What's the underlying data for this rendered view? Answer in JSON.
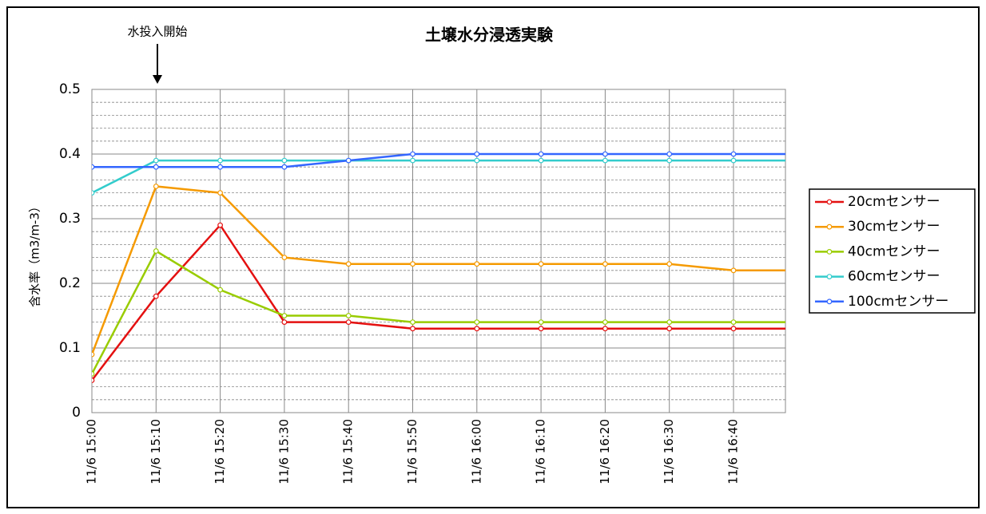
{
  "chart_data": {
    "type": "line",
    "title": "土壌水分浸透実験",
    "annotation": "水投入開始",
    "ylabel": "含水率（m3/m-3）",
    "categories": [
      "11/6 15:00",
      "11/6 15:10",
      "11/6 15:20",
      "11/6 15:30",
      "11/6 15:40",
      "11/6 15:50",
      "11/6 16:00",
      "11/6 16:10",
      "11/6 16:20",
      "11/6 16:30",
      "11/6 16:40",
      null
    ],
    "series": [
      {
        "name": "20cmセンサー",
        "color": "#e41010",
        "values": [
          0.05,
          0.18,
          0.29,
          0.14,
          0.14,
          0.13,
          0.13,
          0.13,
          0.13,
          0.13,
          0.13,
          0.13
        ]
      },
      {
        "name": "30cmセンサー",
        "color": "#f59a00",
        "values": [
          0.09,
          0.35,
          0.34,
          0.24,
          0.23,
          0.23,
          0.23,
          0.23,
          0.23,
          0.23,
          0.22,
          0.22
        ]
      },
      {
        "name": "40cmセンサー",
        "color": "#99cc00",
        "values": [
          0.06,
          0.25,
          0.19,
          0.15,
          0.15,
          0.14,
          0.14,
          0.14,
          0.14,
          0.14,
          0.14,
          0.14
        ]
      },
      {
        "name": "60cmセンサー",
        "color": "#33cccc",
        "values": [
          0.34,
          0.39,
          0.39,
          0.39,
          0.39,
          0.39,
          0.39,
          0.39,
          0.39,
          0.39,
          0.39,
          0.39
        ]
      },
      {
        "name": "100cmセンサー",
        "color": "#3366ff",
        "values": [
          0.38,
          0.38,
          0.38,
          0.38,
          0.39,
          0.4,
          0.4,
          0.4,
          0.4,
          0.4,
          0.4,
          0.4
        ]
      }
    ],
    "ylim": [
      0,
      0.5
    ],
    "yticks": [
      0,
      0.1,
      0.2,
      0.3,
      0.4,
      0.5
    ],
    "grid": true,
    "legend": "right"
  }
}
